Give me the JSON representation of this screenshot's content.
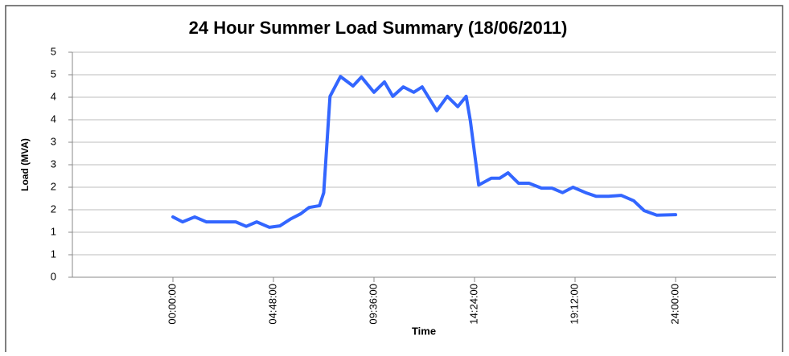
{
  "chart_data": {
    "type": "line",
    "title": "24 Hour Summer Load Summary (18/06/2011)",
    "y_label": "Load (MVA)",
    "x_label": "Time",
    "x": [
      0,
      0.46,
      1.04,
      1.6,
      2.2,
      3.0,
      3.5,
      4.0,
      4.6,
      5.1,
      5.6,
      6.1,
      6.5,
      7.0,
      7.2,
      7.5,
      8.0,
      8.6,
      9.0,
      9.6,
      10.1,
      10.5,
      11.0,
      11.5,
      11.9,
      12.6,
      13.1,
      13.6,
      14.0,
      14.2,
      14.6,
      15.2,
      15.6,
      16.0,
      16.5,
      17.0,
      17.6,
      18.1,
      18.6,
      19.1,
      19.7,
      20.2,
      20.8,
      21.4,
      22.0,
      22.5,
      23.1,
      24.0
    ],
    "series": [
      {
        "name": "Load",
        "color": "#3366ff",
        "values": [
          1.34,
          1.23,
          1.34,
          1.23,
          1.23,
          1.23,
          1.13,
          1.23,
          1.11,
          1.14,
          1.29,
          1.41,
          1.55,
          1.59,
          1.88,
          4.02,
          4.46,
          4.25,
          4.45,
          4.11,
          4.34,
          4.02,
          4.23,
          4.11,
          4.23,
          3.7,
          4.02,
          3.79,
          4.02,
          3.48,
          2.05,
          2.2,
          2.2,
          2.32,
          2.09,
          2.09,
          1.98,
          1.98,
          1.88,
          2.0,
          1.88,
          1.8,
          1.8,
          1.82,
          1.7,
          1.48,
          1.38,
          1.39
        ]
      }
    ],
    "xlim": [
      -4.8,
      28.8
    ],
    "xticks": [
      {
        "value": 0,
        "label": "00:00:00"
      },
      {
        "value": 4.8,
        "label": "04:48:00"
      },
      {
        "value": 9.6,
        "label": "09:36:00"
      },
      {
        "value": 14.4,
        "label": "14:24:00"
      },
      {
        "value": 19.2,
        "label": "19:12:00"
      },
      {
        "value": 24,
        "label": "24:00:00"
      }
    ],
    "ylim": [
      0,
      5
    ],
    "yticks": [
      0,
      {
        "value": 0.5,
        "label": "1"
      },
      1,
      {
        "value": 1.5,
        "label": "2"
      },
      2,
      {
        "value": 2.5,
        "label": "3"
      },
      3,
      {
        "value": 3.5,
        "label": "4"
      },
      4,
      {
        "value": 4.5,
        "label": "5"
      },
      5
    ],
    "grid": true
  }
}
